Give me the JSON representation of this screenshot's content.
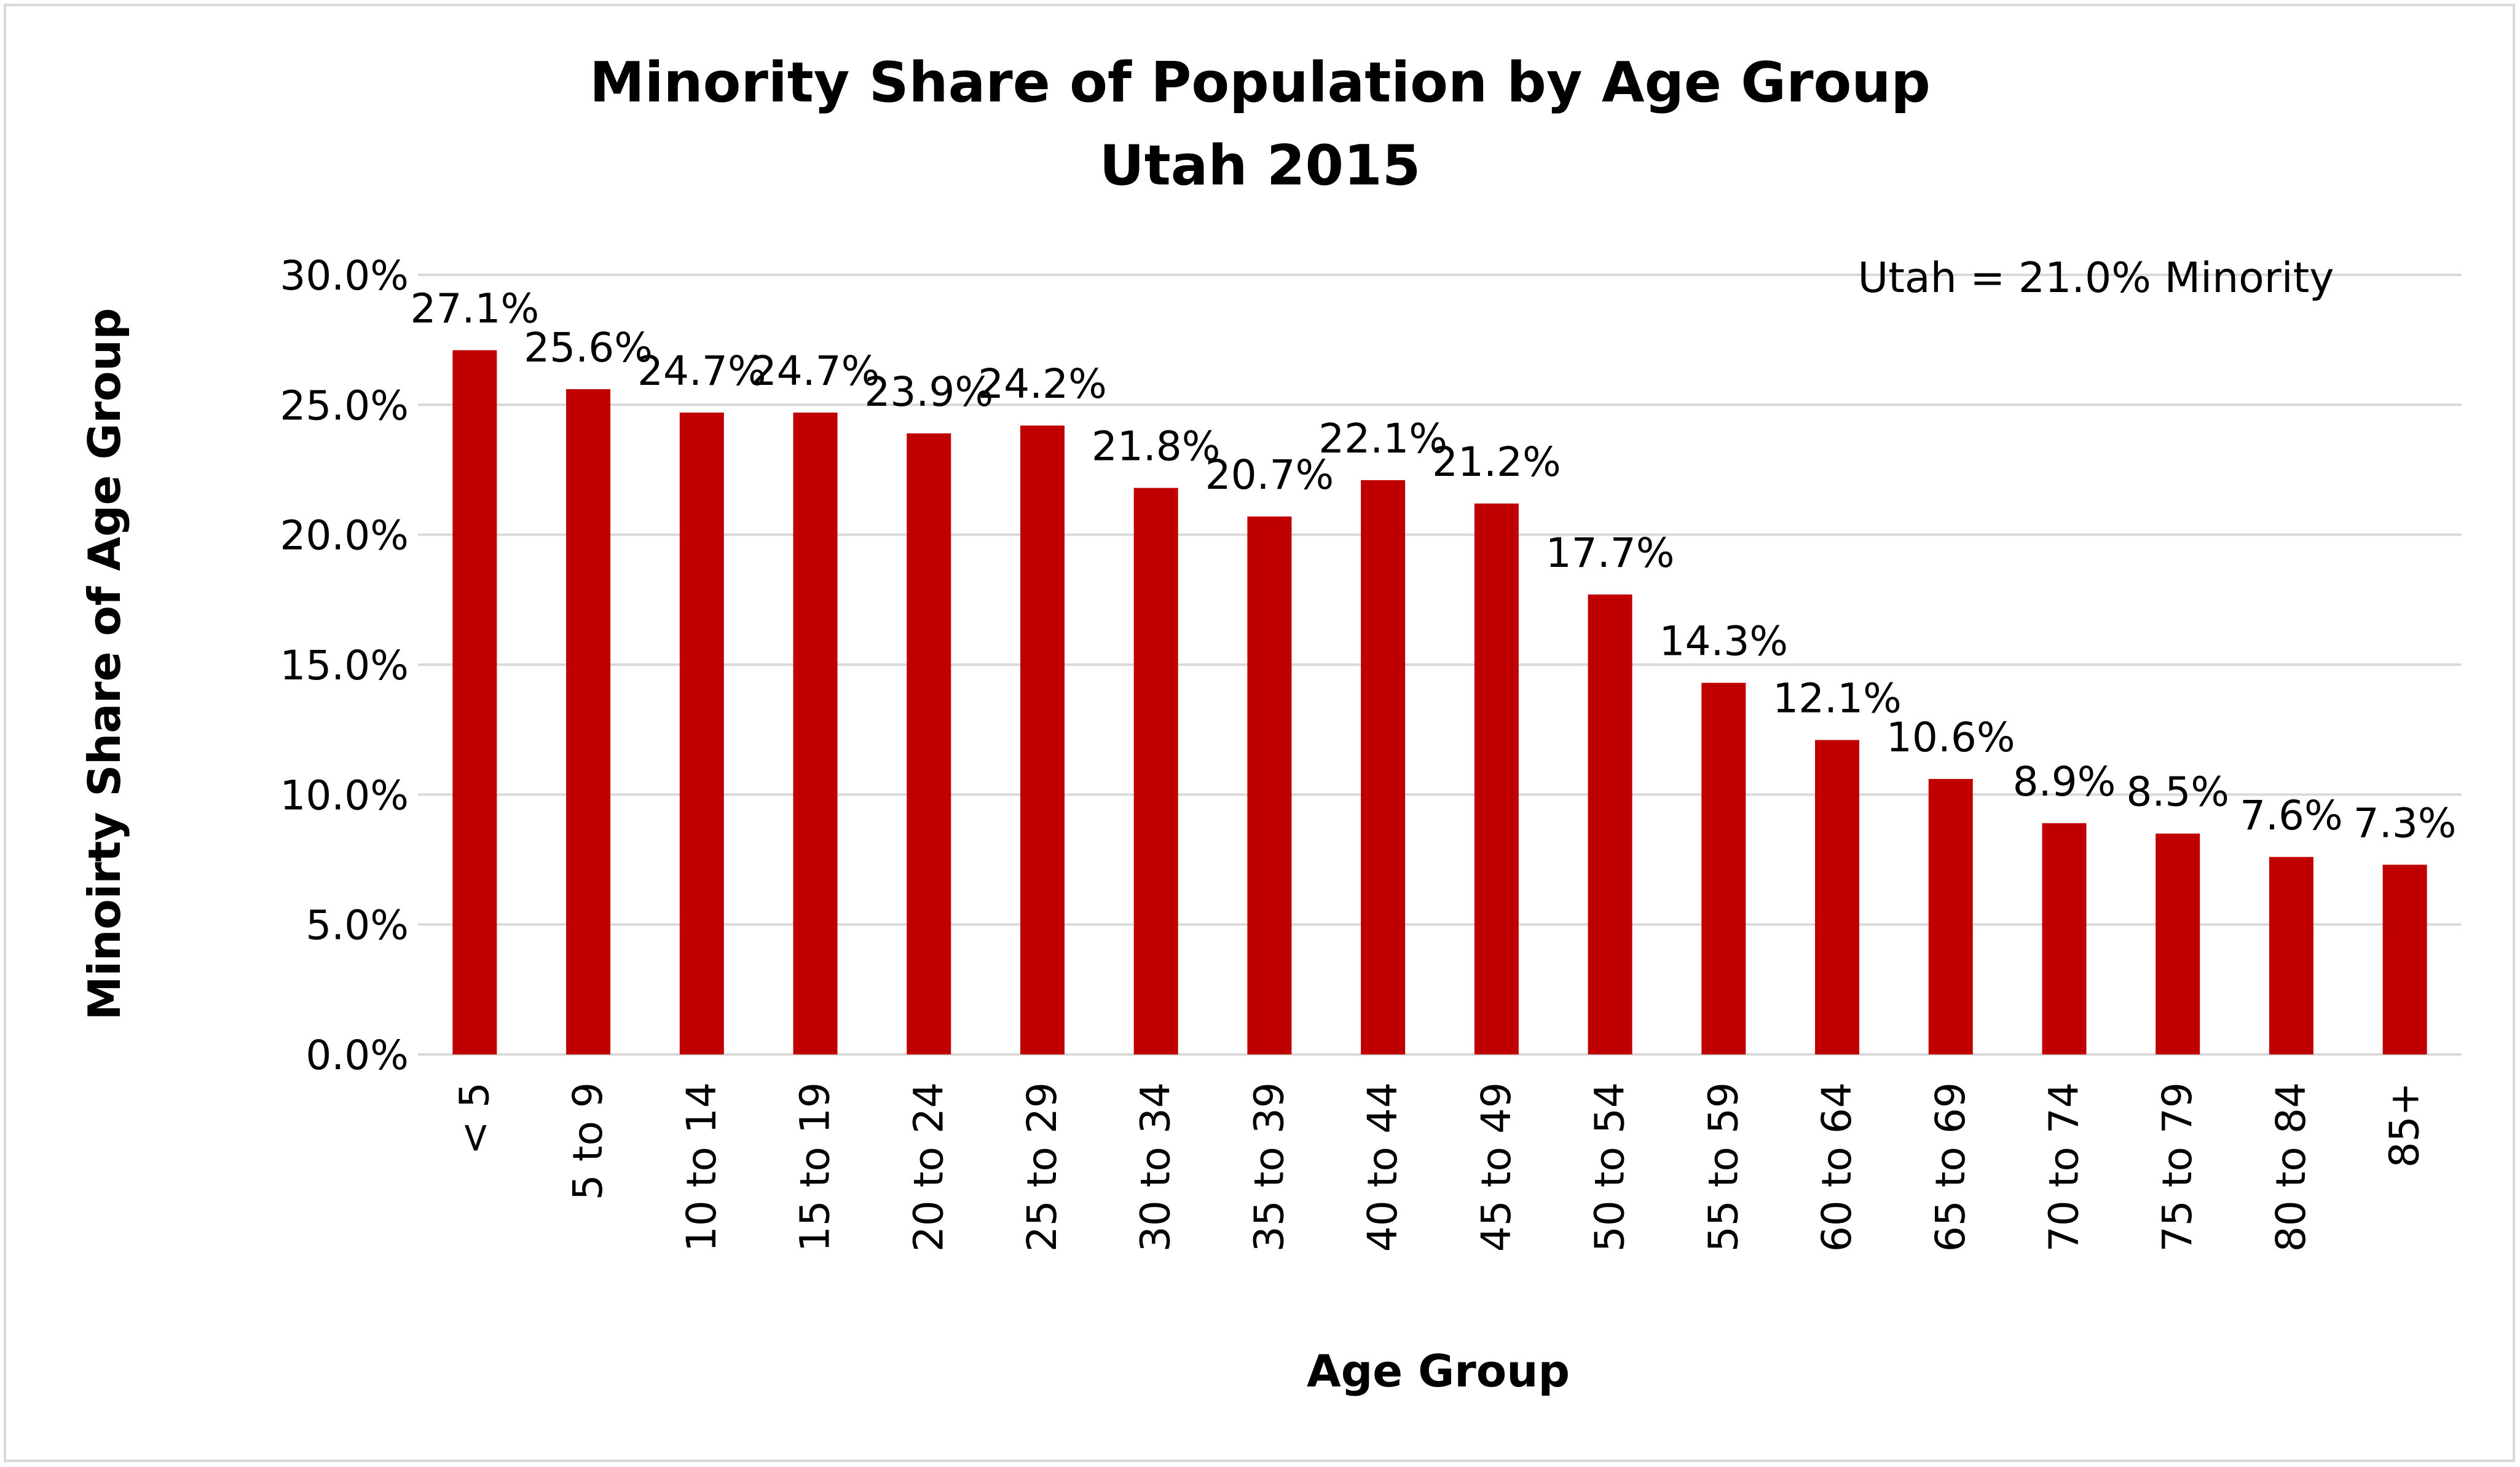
{
  "chart_data": {
    "type": "bar",
    "title": "Minority Share of Population by Age Group",
    "subtitle": "Utah 2015",
    "xlabel": "Age Group",
    "ylabel": "Minoirty Share of Age Group",
    "annotation": "Utah = 21.0% Minority",
    "categories": [
      "< 5",
      "5 to 9",
      "10 to 14",
      "15 to 19",
      "20 to 24",
      "25 to 29",
      "30 to 34",
      "35 to 39",
      "40 to 44",
      "45 to 49",
      "50 to 54",
      "55 to 59",
      "60 to 64",
      "65 to 69",
      "70 to 74",
      "75 to 79",
      "80 to 84",
      "85+"
    ],
    "values": [
      27.1,
      25.6,
      24.7,
      24.7,
      23.9,
      24.2,
      21.8,
      20.7,
      22.1,
      21.2,
      17.7,
      14.3,
      12.1,
      10.6,
      8.9,
      8.5,
      7.6,
      7.3
    ],
    "data_labels": [
      "27.1%",
      "25.6%",
      "24.7%",
      "24.7%",
      "23.9%",
      "24.2%",
      "21.8%",
      "20.7%",
      "22.1%",
      "21.2%",
      "17.7%",
      "14.3%",
      "12.1%",
      "10.6%",
      "8.9%",
      "8.5%",
      "7.6%",
      "7.3%"
    ],
    "ylim": [
      0,
      30
    ],
    "yticks": [
      0,
      5,
      10,
      15,
      20,
      25,
      30
    ],
    "ytick_labels": [
      "0.0%",
      "5.0%",
      "10.0%",
      "15.0%",
      "20.0%",
      "25.0%",
      "30.0%"
    ],
    "grid": true,
    "legend": "none",
    "bar_color": "#c00000",
    "grid_color": "#d9d9d9"
  }
}
